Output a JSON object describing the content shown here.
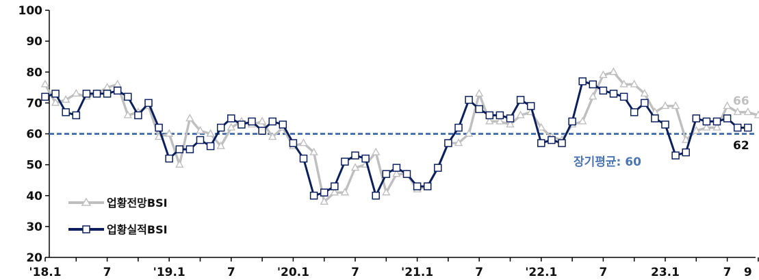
{
  "chart_data": {
    "type": "line",
    "ylim": [
      20,
      100
    ],
    "yticks": [
      20,
      30,
      40,
      50,
      60,
      70,
      80,
      90,
      100
    ],
    "x_tick_labels": [
      {
        "i": 0,
        "label": "'18.1"
      },
      {
        "i": 6,
        "label": "7"
      },
      {
        "i": 12,
        "label": "'19.1"
      },
      {
        "i": 18,
        "label": "7"
      },
      {
        "i": 24,
        "label": "'20.1"
      },
      {
        "i": 30,
        "label": "7"
      },
      {
        "i": 36,
        "label": "'21.1"
      },
      {
        "i": 42,
        "label": "7"
      },
      {
        "i": 48,
        "label": "'22.1"
      },
      {
        "i": 54,
        "label": "7"
      },
      {
        "i": 60,
        "label": "23.1"
      },
      {
        "i": 66,
        "label": "7"
      },
      {
        "i": 68,
        "label": "9"
      }
    ],
    "series": [
      {
        "name": "업황전망BSI",
        "color": "#bfbfbf",
        "marker": "triangle",
        "values": [
          76,
          70,
          71,
          73,
          72,
          73,
          75,
          76,
          66,
          67,
          69,
          59,
          60,
          50,
          65,
          61,
          60,
          56,
          62,
          64,
          63,
          64,
          59,
          62,
          56,
          57,
          54,
          38,
          41,
          41,
          49,
          50,
          54,
          41,
          47,
          47,
          42,
          43,
          49,
          57,
          57,
          60,
          73,
          64,
          64,
          63,
          66,
          67,
          62,
          59,
          58,
          63,
          64,
          72,
          79,
          80,
          76,
          76,
          73,
          67,
          69,
          69,
          58,
          61,
          62,
          62,
          69,
          67,
          67,
          66,
          66
        ]
      },
      {
        "name": "업황실적BSI",
        "color": "#0b1f5c",
        "marker": "square",
        "values": [
          72,
          73,
          67,
          66,
          73,
          73,
          73,
          74,
          72,
          66,
          70,
          62,
          52,
          55,
          55,
          58,
          56,
          62,
          65,
          63,
          64,
          61,
          64,
          63,
          57,
          52,
          40,
          41,
          43,
          51,
          53,
          52,
          40,
          47,
          49,
          47,
          43,
          43,
          49,
          57,
          62,
          71,
          68,
          66,
          66,
          65,
          71,
          69,
          57,
          58,
          57,
          64,
          77,
          76,
          74,
          73,
          72,
          67,
          70,
          65,
          63,
          53,
          54,
          65,
          64,
          64,
          65,
          62,
          62
        ]
      }
    ],
    "reference_line": {
      "value": 60,
      "label": "장기평균:  60",
      "color": "#4a74b2"
    },
    "end_labels": [
      {
        "series": 0,
        "text": "66"
      },
      {
        "series": 1,
        "text": "62"
      }
    ],
    "legend_position": "bottom-left",
    "grid": false
  }
}
